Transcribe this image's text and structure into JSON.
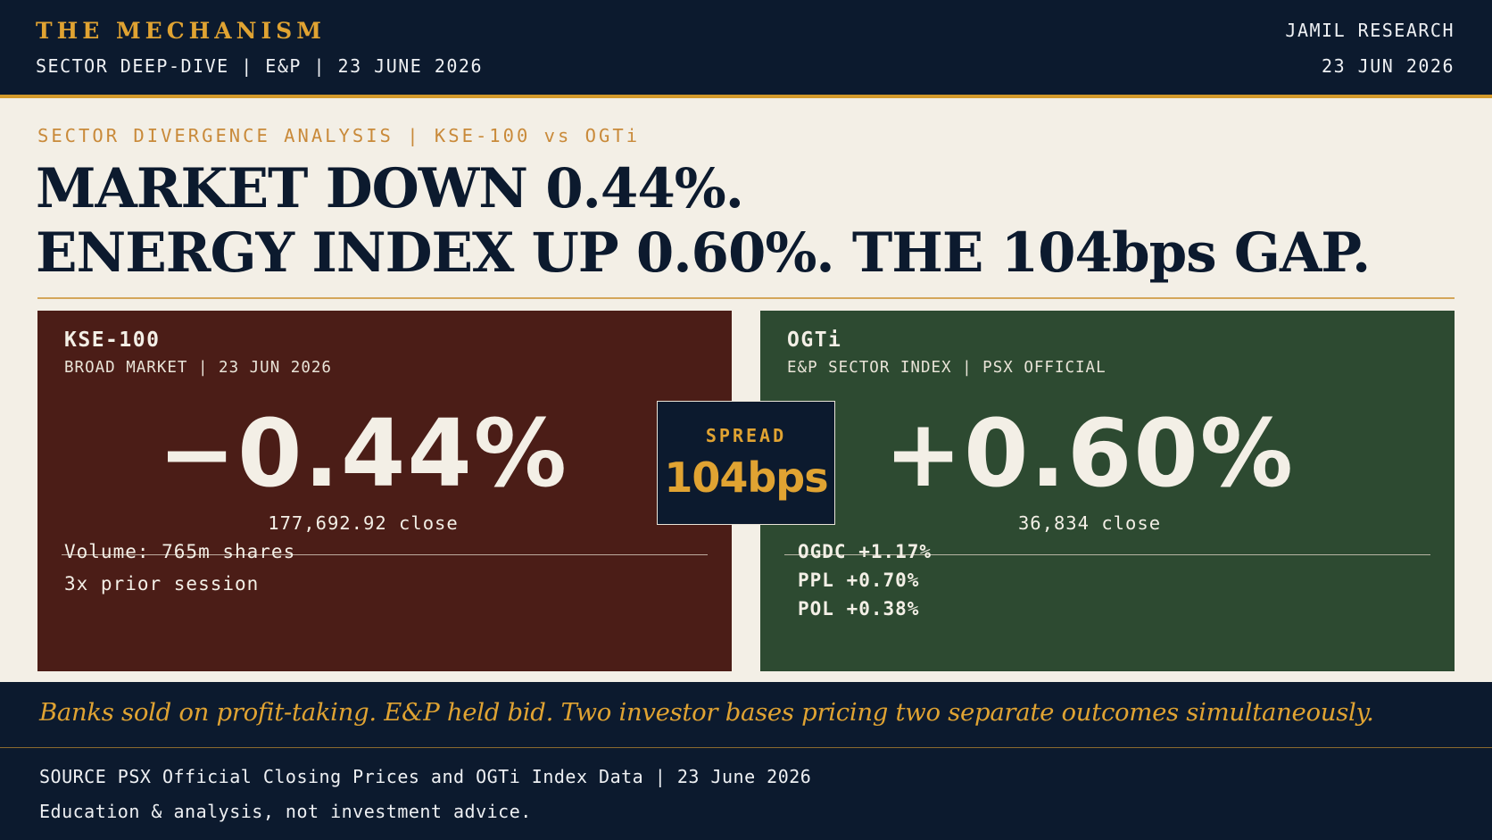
{
  "header": {
    "brand": "THE MECHANISM",
    "subtitle": "SECTOR DEEP-DIVE | E&P | 23 JUNE 2026",
    "firm": "JAMIL RESEARCH",
    "date": "23 JUN 2026"
  },
  "kicker": "SECTOR DIVERGENCE ANALYSIS | KSE-100 vs OGTi",
  "headline": {
    "line1": "MARKET DOWN 0.44%.",
    "line2": "ENERGY INDEX UP 0.60%. THE 104bps GAP."
  },
  "left_card": {
    "title": "KSE-100",
    "subtitle": "BROAD MARKET | 23 JUN 2026",
    "change": "−0.44%",
    "close": "177,692.92 close",
    "meta1": "Volume: 765m shares",
    "meta2": "3x prior session",
    "color": "#4b1d17"
  },
  "spread": {
    "label": "SPREAD",
    "value": "104bps"
  },
  "right_card": {
    "title": "OGTi",
    "subtitle": "E&P SECTOR INDEX | PSX OFFICIAL",
    "change": "+0.60%",
    "close": "36,834 close",
    "stocks": [
      "OGDC +1.17%",
      "PPL +0.70%",
      "POL +0.38%"
    ],
    "color": "#2d4a31"
  },
  "quote": "Banks sold on profit-taking. E&P held bid. Two investor bases pricing two separate outcomes simultaneously.",
  "footer": {
    "source": "SOURCE PSX Official Closing Prices and OGTi Index Data | 23 June 2026",
    "disclaimer": "Education & analysis, not investment advice."
  },
  "colors": {
    "navy": "#0c1a2e",
    "gold": "#e0a332",
    "cream": "#f3efe6"
  }
}
